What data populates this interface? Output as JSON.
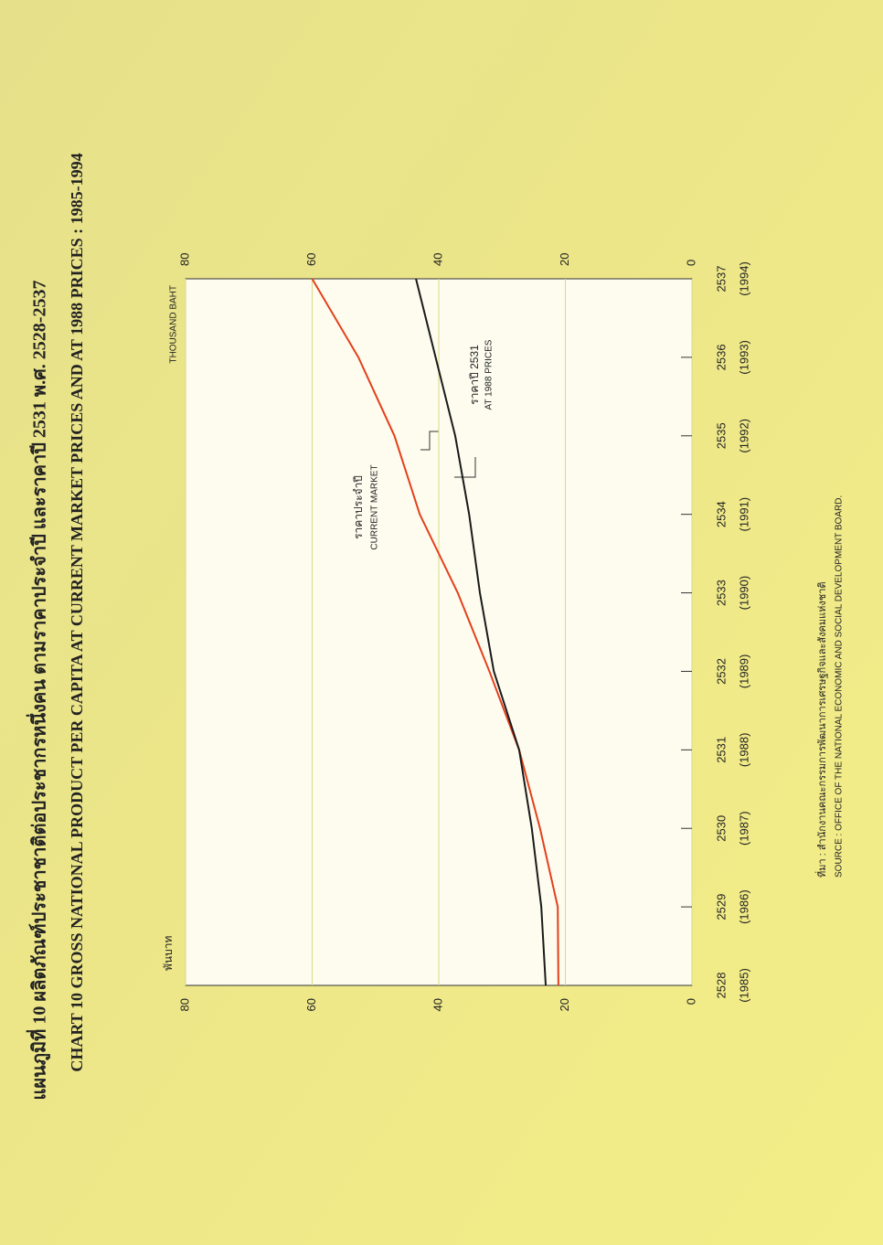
{
  "chart_data": {
    "type": "line",
    "title_th": "แผนภูมิที่ 10  ผลิตภัณฑ์ประชาชาติต่อประชากรหนึ่งคน ตามราคาประจำปี และราคาปี 2531 พ.ศ. 2528-2537",
    "title": "CHART 10  GROSS NATIONAL PRODUCT PER CAPITA AT CURRENT MARKET PRICES AND AT 1988 PRICES : 1985-1994",
    "y_label_th": "พันบาท",
    "y_label": "THOUSAND  BAHT",
    "categories": [
      "2528",
      "2529",
      "2530",
      "2531",
      "2532",
      "2533",
      "2534",
      "2535",
      "2536",
      "2537"
    ],
    "categories_ce": [
      "(1985)",
      "(1986)",
      "(1987)",
      "(1988)",
      "(1989)",
      "(1990)",
      "(1991)",
      "(1992)",
      "(1993)",
      "(1994)"
    ],
    "series": [
      {
        "name": "ราคาประจำปี",
        "name_en": "CURRENT MARKET",
        "color": "#e4401c",
        "values": [
          21.1,
          21.2,
          24,
          27.3,
          32,
          37,
          43,
          47,
          52.7,
          60
        ]
      },
      {
        "name": "ราคาปี 2531",
        "name_en": "AT 1988 PRICES",
        "color": "#1a1a1a",
        "values": [
          23.1,
          23.8,
          25.3,
          27.3,
          31.3,
          33.5,
          35.2,
          37.4,
          40.5,
          43.6
        ]
      }
    ],
    "ylim": [
      0,
      80
    ],
    "yticks": [
      0,
      20,
      40,
      60,
      80
    ],
    "grid": true,
    "source_th": "ที่มา  :  สำนักงานคณะกรรมการพัฒนาการเศรษฐกิจและสังคมแห่งชาติ",
    "source": "SOURCE  :  OFFICE OF THE NATIONAL ECONOMIC AND SOCIAL DEVELOPMENT BOARD."
  }
}
